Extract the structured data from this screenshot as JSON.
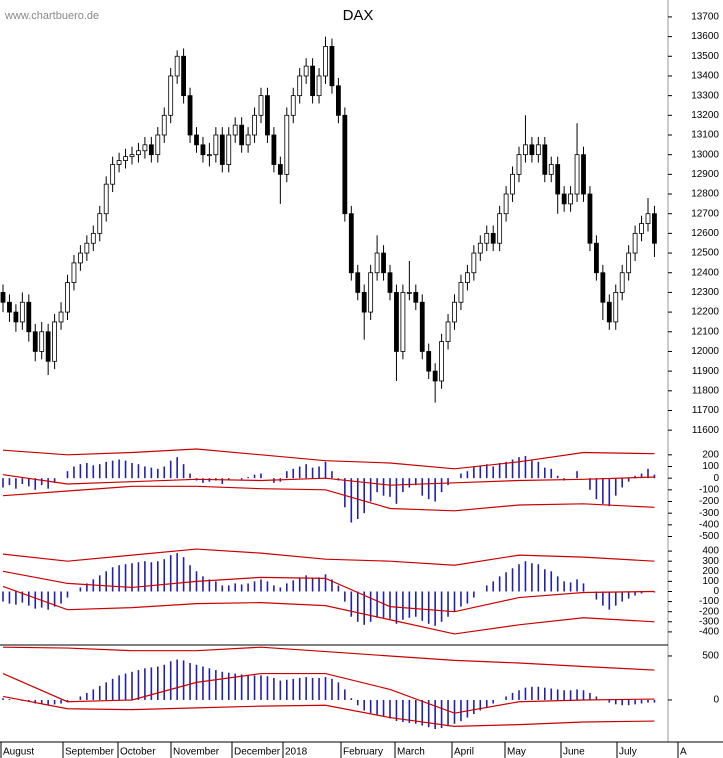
{
  "chart_data": [
    {
      "type": "candlestick",
      "title": "DAX",
      "source": "www.chartbuero.de",
      "months": [
        "August",
        "September",
        "October",
        "November",
        "December",
        "2018",
        "February",
        "March",
        "April",
        "May",
        "June",
        "July",
        "A"
      ],
      "ylim": [
        11550,
        13786
      ],
      "yticks": [
        11600,
        11700,
        11800,
        11900,
        12000,
        12100,
        12200,
        12300,
        12400,
        12500,
        12600,
        12700,
        12800,
        12900,
        13000,
        13100,
        13200,
        13300,
        13400,
        13500,
        13600,
        13700
      ],
      "ohlc": [
        [
          12300,
          12340,
          12200,
          12250
        ],
        [
          12250,
          12290,
          12150,
          12200
        ],
        [
          12200,
          12240,
          12100,
          12150
        ],
        [
          12150,
          12300,
          12110,
          12250
        ],
        [
          12250,
          12290,
          12050,
          12100
        ],
        [
          12100,
          12140,
          11950,
          12000
        ],
        [
          12000,
          12150,
          11960,
          12100
        ],
        [
          12100,
          12140,
          11880,
          11950
        ],
        [
          11950,
          12190,
          11910,
          12150
        ],
        [
          12150,
          12250,
          12110,
          12200
        ],
        [
          12200,
          12390,
          12160,
          12350
        ],
        [
          12350,
          12490,
          12310,
          12450
        ],
        [
          12450,
          12540,
          12410,
          12500
        ],
        [
          12500,
          12590,
          12460,
          12550
        ],
        [
          12550,
          12640,
          12510,
          12600
        ],
        [
          12600,
          12740,
          12560,
          12700
        ],
        [
          12700,
          12890,
          12660,
          12850
        ],
        [
          12850,
          12990,
          12810,
          12950
        ],
        [
          12950,
          13010,
          12910,
          12970
        ],
        [
          12970,
          13030,
          12930,
          12990
        ],
        [
          12990,
          13040,
          12950,
          13000
        ],
        [
          13000,
          13060,
          12960,
          13020
        ],
        [
          13020,
          13090,
          12980,
          13050
        ],
        [
          13050,
          13090,
          12960,
          13000
        ],
        [
          13000,
          13140,
          12960,
          13100
        ],
        [
          13100,
          13240,
          13060,
          13200
        ],
        [
          13200,
          13440,
          13160,
          13400
        ],
        [
          13400,
          13530,
          13360,
          13500
        ],
        [
          13500,
          13540,
          13260,
          13300
        ],
        [
          13300,
          13340,
          13060,
          13100
        ],
        [
          13100,
          13140,
          13010,
          13050
        ],
        [
          13050,
          13090,
          12960,
          13000
        ],
        [
          13000,
          13060,
          12940,
          13000
        ],
        [
          13000,
          13140,
          12960,
          13100
        ],
        [
          13100,
          13140,
          12910,
          12950
        ],
        [
          12950,
          13140,
          12910,
          13100
        ],
        [
          13100,
          13190,
          13060,
          13150
        ],
        [
          13150,
          13190,
          13010,
          13050
        ],
        [
          13050,
          13140,
          13010,
          13100
        ],
        [
          13100,
          13240,
          13060,
          13200
        ],
        [
          13200,
          13340,
          13160,
          13300
        ],
        [
          13300,
          13340,
          13060,
          13100
        ],
        [
          13100,
          13140,
          12910,
          12950
        ],
        [
          12950,
          12990,
          12750,
          12900
        ],
        [
          12900,
          13240,
          12860,
          13200
        ],
        [
          13200,
          13340,
          13160,
          13300
        ],
        [
          13300,
          13440,
          13260,
          13400
        ],
        [
          13400,
          13490,
          13360,
          13450
        ],
        [
          13450,
          13490,
          13260,
          13300
        ],
        [
          13300,
          13440,
          13260,
          13400
        ],
        [
          13400,
          13600,
          13360,
          13550
        ],
        [
          13550,
          13590,
          13310,
          13350
        ],
        [
          13350,
          13390,
          13160,
          13200
        ],
        [
          13200,
          13240,
          12660,
          12700
        ],
        [
          12700,
          12740,
          12360,
          12400
        ],
        [
          12400,
          12440,
          12260,
          12300
        ],
        [
          12300,
          12340,
          12060,
          12200
        ],
        [
          12200,
          12440,
          12160,
          12400
        ],
        [
          12400,
          12590,
          12360,
          12500
        ],
        [
          12500,
          12540,
          12360,
          12400
        ],
        [
          12400,
          12440,
          12260,
          12300
        ],
        [
          12300,
          12340,
          11850,
          12000
        ],
        [
          12000,
          12340,
          11960,
          12300
        ],
        [
          12300,
          12460,
          12260,
          12300
        ],
        [
          12300,
          12340,
          12210,
          12250
        ],
        [
          12250,
          12290,
          11960,
          12000
        ],
        [
          12000,
          12040,
          11860,
          11900
        ],
        [
          11900,
          11940,
          11740,
          11850
        ],
        [
          11850,
          12090,
          11810,
          12050
        ],
        [
          12050,
          12190,
          12010,
          12150
        ],
        [
          12150,
          12290,
          12110,
          12250
        ],
        [
          12250,
          12390,
          12210,
          12350
        ],
        [
          12350,
          12440,
          12310,
          12400
        ],
        [
          12400,
          12540,
          12360,
          12500
        ],
        [
          12500,
          12590,
          12460,
          12550
        ],
        [
          12550,
          12640,
          12510,
          12600
        ],
        [
          12600,
          12640,
          12510,
          12550
        ],
        [
          12550,
          12740,
          12510,
          12700
        ],
        [
          12700,
          12840,
          12660,
          12800
        ],
        [
          12800,
          12940,
          12760,
          12900
        ],
        [
          12900,
          13040,
          12860,
          13000
        ],
        [
          13000,
          13200,
          12960,
          13050
        ],
        [
          13050,
          13090,
          12960,
          13000
        ],
        [
          13000,
          13090,
          12960,
          13050
        ],
        [
          13050,
          13090,
          12860,
          12900
        ],
        [
          12900,
          12990,
          12860,
          12950
        ],
        [
          12950,
          12990,
          12700,
          12800
        ],
        [
          12800,
          12840,
          12710,
          12750
        ],
        [
          12750,
          12840,
          12710,
          12800
        ],
        [
          12800,
          13160,
          12760,
          13000
        ],
        [
          13000,
          13040,
          12760,
          12800
        ],
        [
          12800,
          12840,
          12510,
          12550
        ],
        [
          12550,
          12590,
          12360,
          12400
        ],
        [
          12400,
          12440,
          12160,
          12250
        ],
        [
          12250,
          12290,
          12110,
          12150
        ],
        [
          12150,
          12340,
          12110,
          12300
        ],
        [
          12300,
          12440,
          12260,
          12400
        ],
        [
          12400,
          12540,
          12360,
          12500
        ],
        [
          12500,
          12640,
          12460,
          12600
        ],
        [
          12600,
          12690,
          12560,
          12650
        ],
        [
          12650,
          12780,
          12610,
          12700
        ],
        [
          12700,
          12740,
          12480,
          12550
        ]
      ]
    },
    {
      "type": "histogram-bands",
      "ylim": [
        -530,
        310
      ],
      "yticks": [
        200,
        100,
        0,
        -100,
        -200,
        -300,
        -400,
        -500
      ],
      "color": "#2020b0",
      "band_color": "#cc0000",
      "values": [
        -80,
        -60,
        -90,
        -50,
        -70,
        -100,
        -60,
        -90,
        -40,
        0,
        60,
        100,
        120,
        130,
        110,
        120,
        140,
        150,
        160,
        150,
        130,
        120,
        100,
        90,
        80,
        100,
        150,
        180,
        120,
        40,
        -20,
        -40,
        -30,
        -20,
        -50,
        -20,
        0,
        -10,
        10,
        30,
        40,
        0,
        -40,
        -30,
        60,
        80,
        100,
        120,
        90,
        100,
        140,
        60,
        -20,
        -250,
        -380,
        -350,
        -300,
        -200,
        -120,
        -150,
        -160,
        -220,
        -120,
        -80,
        -60,
        -150,
        -180,
        -200,
        -120,
        -60,
        0,
        40,
        60,
        100,
        110,
        120,
        100,
        130,
        140,
        160,
        180,
        190,
        150,
        140,
        90,
        80,
        20,
        -20,
        0,
        60,
        0,
        -100,
        -180,
        -220,
        -240,
        -150,
        -80,
        -30,
        20,
        40,
        80,
        30
      ],
      "band_x": [
        0,
        10,
        20,
        30,
        40,
        50,
        60,
        70,
        80,
        90,
        101
      ],
      "bands": [
        [
          240,
          200,
          220,
          250,
          200,
          150,
          130,
          80,
          140,
          220,
          210
        ],
        [
          30,
          -50,
          -30,
          -10,
          -20,
          0,
          -60,
          -40,
          -20,
          -10,
          10
        ],
        [
          -150,
          -110,
          -70,
          -70,
          -90,
          -100,
          -260,
          -280,
          -230,
          -220,
          -250
        ]
      ]
    },
    {
      "type": "histogram-bands",
      "ylim": [
        -510,
        490
      ],
      "yticks": [
        400,
        300,
        200,
        100,
        0,
        -100,
        -200,
        -300,
        -400
      ],
      "color": "#2020b0",
      "band_color": "#cc0000",
      "values": [
        -100,
        -120,
        -130,
        -110,
        -140,
        -170,
        -160,
        -180,
        -150,
        -120,
        -60,
        0,
        40,
        80,
        120,
        160,
        200,
        240,
        260,
        270,
        280,
        290,
        300,
        290,
        300,
        320,
        360,
        380,
        340,
        260,
        200,
        150,
        120,
        100,
        60,
        60,
        80,
        70,
        80,
        100,
        120,
        100,
        60,
        40,
        80,
        110,
        140,
        160,
        130,
        140,
        170,
        120,
        60,
        -100,
        -250,
        -300,
        -330,
        -300,
        -260,
        -260,
        -270,
        -320,
        -280,
        -260,
        -250,
        -290,
        -320,
        -340,
        -300,
        -250,
        -200,
        -150,
        -120,
        -60,
        0,
        60,
        100,
        150,
        190,
        230,
        270,
        300,
        280,
        270,
        220,
        200,
        150,
        100,
        90,
        120,
        80,
        0,
        -80,
        -140,
        -180,
        -140,
        -100,
        -70,
        -40,
        -20,
        0,
        -10
      ],
      "band_x": [
        0,
        10,
        20,
        30,
        40,
        50,
        60,
        70,
        80,
        90,
        101
      ],
      "bands": [
        [
          370,
          300,
          360,
          420,
          380,
          320,
          300,
          260,
          360,
          340,
          300
        ],
        [
          200,
          80,
          40,
          100,
          140,
          130,
          -150,
          -200,
          -60,
          -10,
          0
        ],
        [
          50,
          -180,
          -160,
          -120,
          -110,
          -140,
          -280,
          -420,
          -330,
          -260,
          -300
        ]
      ]
    },
    {
      "type": "histogram-bands",
      "ylim": [
        -455,
        602
      ],
      "yticks": [
        500,
        0
      ],
      "color": "#2020b0",
      "band_color": "#cc0000",
      "values": [
        20,
        10,
        0,
        -10,
        -20,
        -40,
        -40,
        -60,
        -50,
        -40,
        -20,
        0,
        40,
        80,
        120,
        160,
        200,
        240,
        280,
        300,
        320,
        340,
        360,
        370,
        380,
        400,
        440,
        460,
        450,
        420,
        400,
        380,
        360,
        340,
        320,
        310,
        300,
        290,
        280,
        280,
        280,
        270,
        250,
        220,
        230,
        240,
        250,
        260,
        250,
        250,
        260,
        240,
        200,
        120,
        20,
        -60,
        -120,
        -150,
        -170,
        -190,
        -210,
        -240,
        -250,
        -260,
        -270,
        -290,
        -310,
        -330,
        -320,
        -300,
        -270,
        -240,
        -200,
        -160,
        -120,
        -80,
        -40,
        0,
        40,
        80,
        110,
        140,
        150,
        150,
        140,
        130,
        120,
        110,
        110,
        120,
        110,
        80,
        40,
        0,
        -30,
        -50,
        -60,
        -60,
        -50,
        -40,
        -30,
        -30
      ],
      "band_x": [
        0,
        10,
        20,
        30,
        40,
        50,
        60,
        70,
        80,
        90,
        101
      ],
      "bands": [
        [
          600,
          590,
          560,
          560,
          600,
          550,
          500,
          450,
          420,
          380,
          340
        ],
        [
          300,
          -20,
          0,
          200,
          300,
          300,
          120,
          -150,
          -20,
          0,
          10
        ],
        [
          40,
          -100,
          -110,
          -90,
          -70,
          -60,
          -200,
          -300,
          -280,
          -250,
          -240
        ]
      ]
    }
  ]
}
